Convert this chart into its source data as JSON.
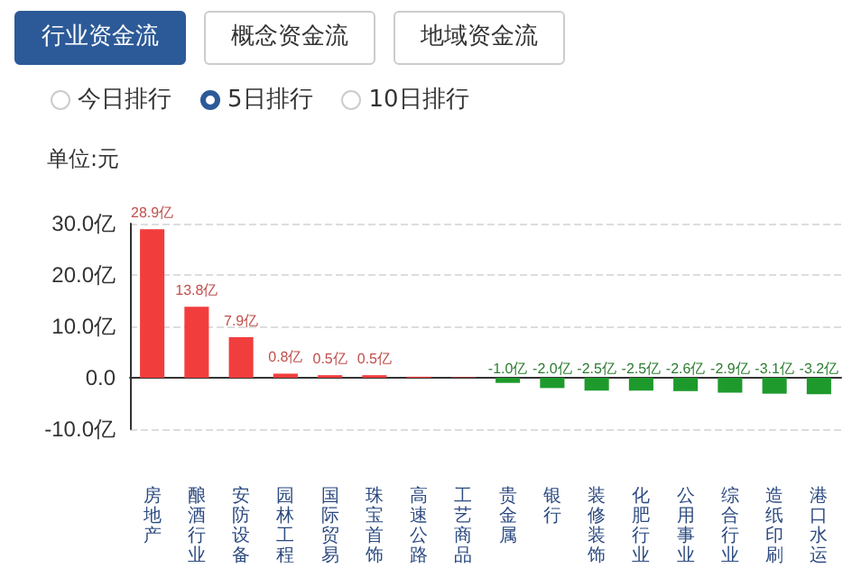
{
  "chart_data": {
    "type": "bar",
    "ylabel": "单位:元",
    "annotations": [
      "行业资金流",
      "概念资金流",
      "地域资金流",
      "今日排行",
      "5日排行",
      "10日排行"
    ],
    "categories": [
      "房地产",
      "酿酒行业",
      "安防设备",
      "园林工程",
      "国际贸易",
      "珠宝首饰",
      "高速公路",
      "工艺商品",
      "贵金属",
      "银行",
      "装修装饰",
      "化肥行业",
      "公用事业",
      "综合行业",
      "造纸印刷",
      "港口水运"
    ],
    "values": [
      28.9,
      13.8,
      7.9,
      0.8,
      0.5,
      0.5,
      0.2,
      0.1,
      -1.0,
      -2.0,
      -2.5,
      -2.5,
      -2.6,
      -2.9,
      -3.1,
      -3.2
    ],
    "value_labels": [
      "28.9亿",
      "13.8亿",
      "7.9亿",
      "0.8亿",
      "0.5亿",
      "0.5亿",
      null,
      null,
      "-1.0亿",
      "-2.0亿",
      "-2.5亿",
      "-2.5亿",
      "-2.6亿",
      "-2.9亿",
      "-3.1亿",
      "-3.2亿"
    ],
    "colors": [
      "#f23d3d",
      "#f23d3d",
      "#f23d3d",
      "#f23d3d",
      "#f23d3d",
      "#f23d3d",
      "#f23d3d",
      "#f23d3d",
      "#1e9a2c",
      "#1e9a2c",
      "#1e9a2c",
      "#1e9a2c",
      "#1e9a2c",
      "#1e9a2c",
      "#1e9a2c",
      "#1e9a2c"
    ],
    "ylim": [
      -10,
      30
    ],
    "yticks": [
      {
        "value": -10,
        "label": "-10.0亿"
      },
      {
        "value": 0,
        "label": "0.0"
      },
      {
        "value": 10,
        "label": "10.0亿"
      },
      {
        "value": 20,
        "label": "20.0亿"
      },
      {
        "value": 30,
        "label": "30.0亿"
      }
    ],
    "grid": "y"
  }
}
